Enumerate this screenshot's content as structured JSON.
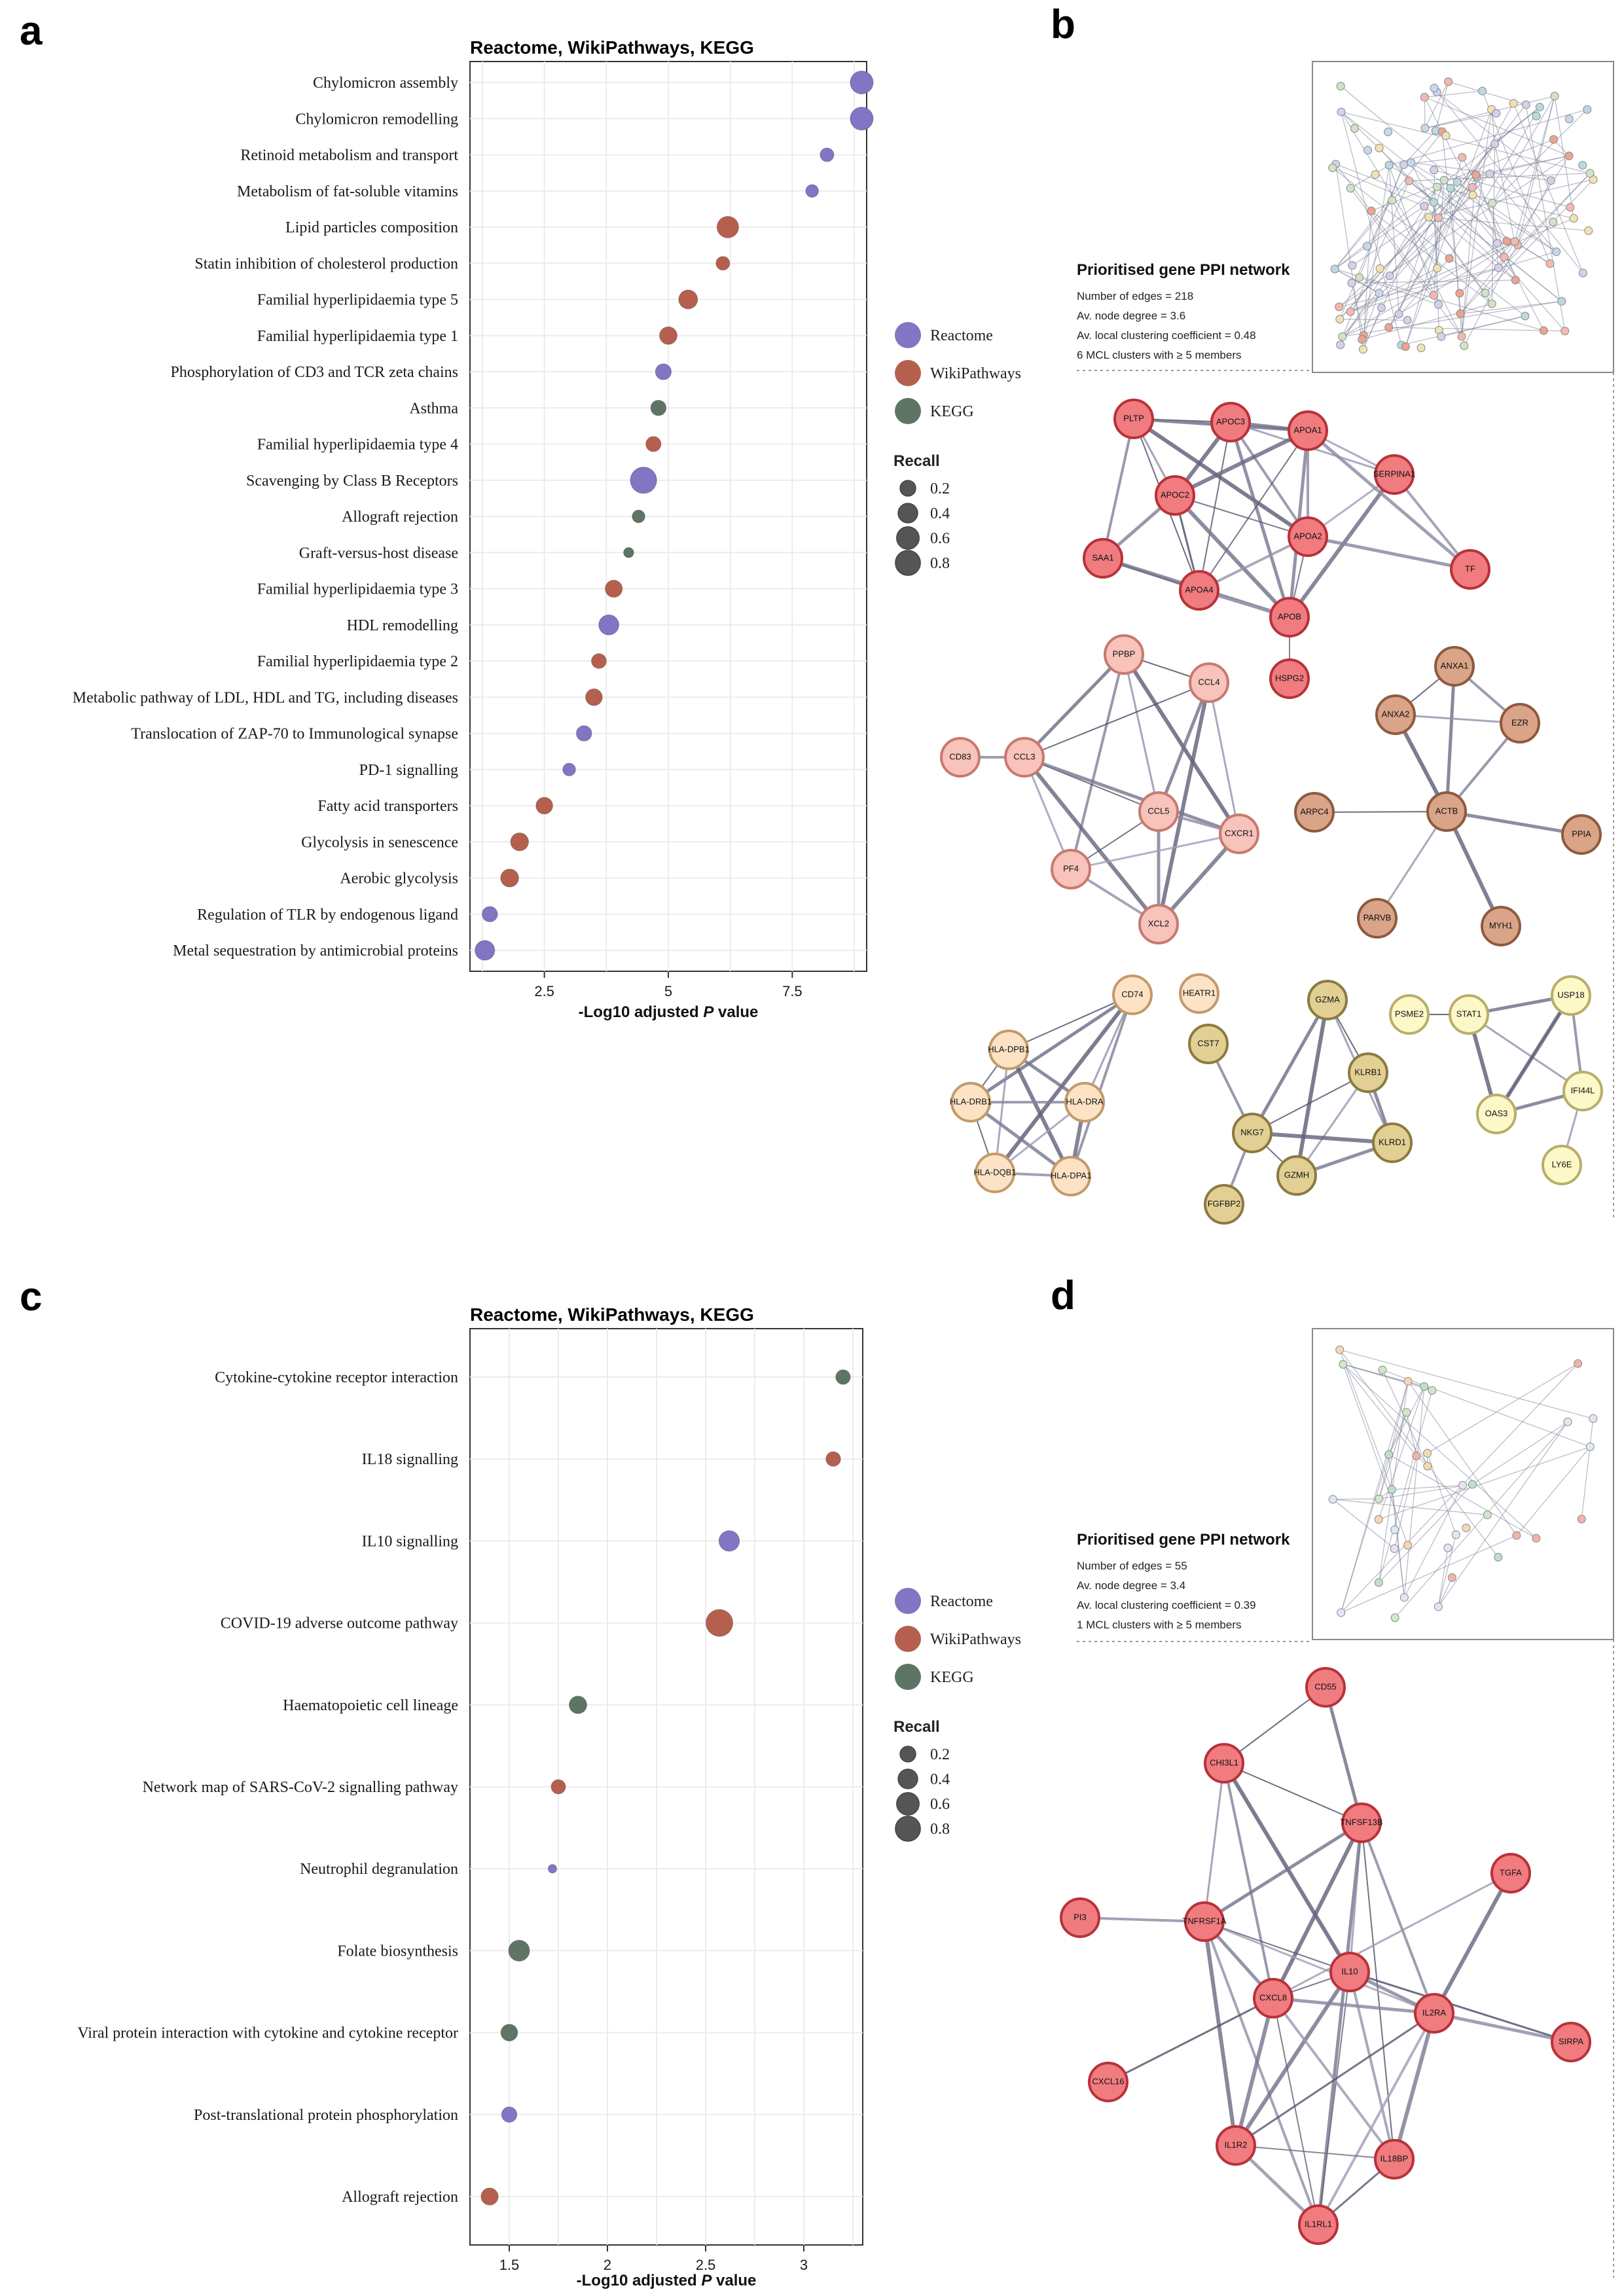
{
  "panels": {
    "a": "a",
    "b": "b",
    "c": "c",
    "d": "d"
  },
  "legend": {
    "sources": [
      {
        "name": "Reactome",
        "color": "#8175c4"
      },
      {
        "name": "WikiPathways",
        "color": "#b5604f"
      },
      {
        "name": "KEGG",
        "color": "#5e7565"
      }
    ],
    "recall_title": "Recall",
    "recall_values": [
      "0.2",
      "0.4",
      "0.6",
      "0.8"
    ],
    "recall_numeric": [
      0.2,
      0.4,
      0.6,
      0.8
    ]
  },
  "chart_data": [
    {
      "type": "scatter",
      "title": "Reactome, WikiPathways, KEGG",
      "xlabel_prefix": "-Log10 adjusted ",
      "xlabel_italic": "P",
      "xlabel_suffix": " value",
      "xlim": [
        1.0,
        9.0
      ],
      "xticks": [
        2.5,
        5,
        7.5
      ],
      "xtick_labels": [
        "2.5",
        "5",
        "7.5"
      ],
      "grid": true,
      "legend_position": "right",
      "points": [
        {
          "label": "Chylomicron assembly",
          "x": 8.9,
          "recall": 0.62,
          "source": "Reactome"
        },
        {
          "label": "Chylomicron remodelling",
          "x": 8.9,
          "recall": 0.62,
          "source": "Reactome"
        },
        {
          "label": "Retinoid metabolism and transport",
          "x": 8.2,
          "recall": 0.12,
          "source": "Reactome"
        },
        {
          "label": "Metabolism of fat-soluble vitamins",
          "x": 7.9,
          "recall": 0.09,
          "source": "Reactome"
        },
        {
          "label": "Lipid particles composition",
          "x": 6.2,
          "recall": 0.52,
          "source": "WikiPathways"
        },
        {
          "label": "Statin inhibition of cholesterol production",
          "x": 6.1,
          "recall": 0.12,
          "source": "WikiPathways"
        },
        {
          "label": "Familial hyperlipidaemia type 5",
          "x": 5.4,
          "recall": 0.35,
          "source": "WikiPathways"
        },
        {
          "label": "Familial  hyperlipidaemia type 1",
          "x": 5.0,
          "recall": 0.28,
          "source": "WikiPathways"
        },
        {
          "label": "Phosphorylation of CD3 and TCR zeta chains",
          "x": 4.9,
          "recall": 0.2,
          "source": "Reactome"
        },
        {
          "label": "Asthma",
          "x": 4.8,
          "recall": 0.18,
          "source": "KEGG"
        },
        {
          "label": "Familial hyperlipidaemia type 4",
          "x": 4.7,
          "recall": 0.17,
          "source": "WikiPathways"
        },
        {
          "label": "Scavenging by Class B Receptors",
          "x": 4.5,
          "recall": 0.9,
          "source": "Reactome"
        },
        {
          "label": "Allograft rejection",
          "x": 4.4,
          "recall": 0.09,
          "source": "KEGG"
        },
        {
          "label": "Graft-versus-host disease",
          "x": 4.2,
          "recall": 0.03,
          "source": "KEGG"
        },
        {
          "label": "Familial hyperlipidaemia type 3",
          "x": 3.9,
          "recall": 0.26,
          "source": "WikiPathways"
        },
        {
          "label": "HDL remodelling",
          "x": 3.8,
          "recall": 0.42,
          "source": "Reactome"
        },
        {
          "label": "Familial hyperlipidaemia type 2",
          "x": 3.6,
          "recall": 0.16,
          "source": "WikiPathways"
        },
        {
          "label": "Metabolic pathway of LDL, HDL and TG, including diseases",
          "x": 3.5,
          "recall": 0.24,
          "source": "WikiPathways"
        },
        {
          "label": "Translocation of ZAP-70 to Immunological synapse",
          "x": 3.3,
          "recall": 0.18,
          "source": "Reactome"
        },
        {
          "label": "PD-1 signalling",
          "x": 3.0,
          "recall": 0.09,
          "source": "Reactome"
        },
        {
          "label": "Fatty acid transporters",
          "x": 2.5,
          "recall": 0.24,
          "source": "WikiPathways"
        },
        {
          "label": "Glycolysis in senescence",
          "x": 2.0,
          "recall": 0.3,
          "source": "WikiPathways"
        },
        {
          "label": "Aerobic glycolysis",
          "x": 1.8,
          "recall": 0.3,
          "source": "WikiPathways"
        },
        {
          "label": "Regulation of TLR by endogenous ligand",
          "x": 1.4,
          "recall": 0.18,
          "source": "Reactome"
        },
        {
          "label": "Metal sequestration by antimicrobial proteins",
          "x": 1.3,
          "recall": 0.4,
          "source": "Reactome"
        }
      ]
    },
    {
      "type": "scatter",
      "title": "Reactome, WikiPathways, KEGG",
      "xlabel_prefix": "-Log10 adjusted ",
      "xlabel_italic": "P",
      "xlabel_suffix": " value",
      "xlim": [
        1.3,
        3.3
      ],
      "xticks": [
        1.5,
        2,
        2.5,
        3
      ],
      "xtick_labels": [
        "1.5",
        "2",
        "2.5",
        "3"
      ],
      "grid": true,
      "legend_position": "right",
      "points": [
        {
          "label": "Cytokine-cytokine receptor interaction",
          "x": 3.2,
          "recall": 0.15,
          "source": "KEGG"
        },
        {
          "label": "IL18 signalling",
          "x": 3.15,
          "recall": 0.15,
          "source": "WikiPathways"
        },
        {
          "label": "IL10 signalling",
          "x": 2.62,
          "recall": 0.45,
          "source": "Reactome"
        },
        {
          "label": "COVID-19 adverse outcome pathway",
          "x": 2.57,
          "recall": 0.95,
          "source": "WikiPathways"
        },
        {
          "label": "Haematopoietic cell lineage",
          "x": 1.85,
          "recall": 0.28,
          "source": "KEGG"
        },
        {
          "label": "Network map of SARS-CoV-2 signalling pathway",
          "x": 1.75,
          "recall": 0.14,
          "source": "WikiPathways"
        },
        {
          "label": "Neutrophil degranulation",
          "x": 1.72,
          "recall": 0.01,
          "source": "Reactome"
        },
        {
          "label": "Folate biosynthesis",
          "x": 1.55,
          "recall": 0.48,
          "source": "KEGG"
        },
        {
          "label": "Viral protein interaction with cytokine and cytokine receptor",
          "x": 1.5,
          "recall": 0.24,
          "source": "KEGG"
        },
        {
          "label": "Post-translational protein phosphorylation",
          "x": 1.5,
          "recall": 0.18,
          "source": "Reactome"
        },
        {
          "label": "Allograft rejection",
          "x": 1.4,
          "recall": 0.26,
          "source": "WikiPathways"
        }
      ]
    }
  ],
  "networks": {
    "b": {
      "title": "Prioritised gene PPI network",
      "stats": [
        "Number of edges = 218",
        "Av. node degree = 3.6",
        "Av. local clustering coefficient = 0.48",
        "6 MCL clusters with ≥ 5 members"
      ],
      "clusters": [
        {
          "color": "#f07c80",
          "stroke": "#b8323a",
          "nodes": [
            "PLTP",
            "APOC3",
            "APOA1",
            "SERPINA1",
            "APOC2",
            "APOA2",
            "SAA1",
            "APOA4",
            "APOB",
            "TF",
            "HSPG2"
          ]
        },
        {
          "color": "#f7c3bb",
          "stroke": "#c77a6f",
          "nodes": [
            "PPBP",
            "CCL4",
            "CD83",
            "CCL3",
            "CCL5",
            "CXCR1",
            "PF4",
            "XCL2"
          ]
        },
        {
          "color": "#d9a487",
          "stroke": "#8e5a3f",
          "nodes": [
            "ANXA1",
            "ANXA2",
            "EZR",
            "ARPC4",
            "ACTB",
            "PPIA",
            "PARVB",
            "MYH1"
          ]
        },
        {
          "color": "#fde3c6",
          "stroke": "#c39a6a",
          "nodes": [
            "CD74",
            "HEATR1",
            "HLA-DPB1",
            "HLA-DRB1",
            "HLA-DRA",
            "HLA-DQB1",
            "HLA-DPA1"
          ]
        },
        {
          "color": "#e2cf94",
          "stroke": "#8c7a40",
          "nodes": [
            "GZMA",
            "CST7",
            "KLRB1",
            "NKG7",
            "KLRD1",
            "FGFBP2",
            "GZMH"
          ]
        },
        {
          "color": "#fdf8c8",
          "stroke": "#b8ae6a",
          "nodes": [
            "PSME2",
            "STAT1",
            "USP18",
            "IFI44L",
            "OAS3",
            "LY6E"
          ]
        }
      ]
    },
    "d": {
      "title": "Prioritised gene PPI network",
      "stats": [
        "Number of edges = 55",
        "Av. node degree = 3.4",
        "Av. local clustering coefficient = 0.39",
        "1 MCL clusters with ≥ 5 members"
      ],
      "clusters": [
        {
          "color": "#f07c80",
          "stroke": "#b8323a",
          "nodes": [
            "CD55",
            "CHI3L1",
            "TNFSF13B",
            "TGFA",
            "PI3",
            "TNFRSF1A",
            "IL10",
            "CXCL8",
            "IL2RA",
            "SIRPA",
            "CXCL16",
            "IL1R2",
            "IL18BP",
            "IL1RL1"
          ]
        }
      ]
    }
  }
}
